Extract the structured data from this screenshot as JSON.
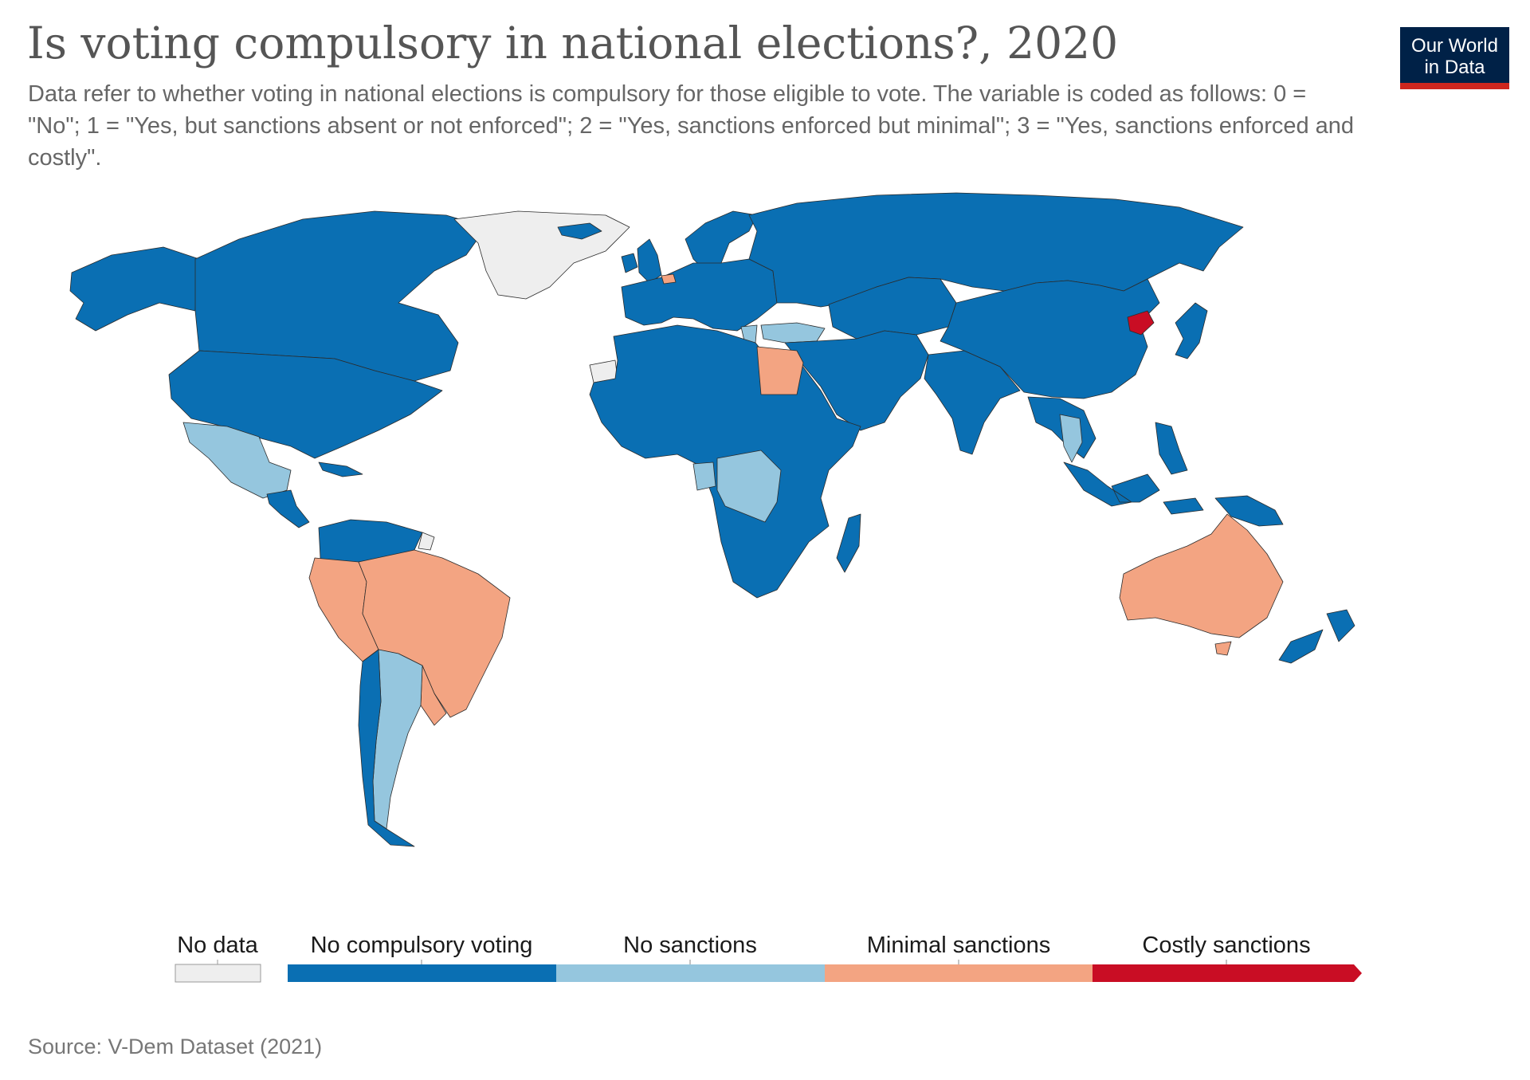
{
  "header": {
    "title": "Is voting compulsory in national elections?, 2020",
    "subtitle": "Data refer to whether voting in national elections is compulsory for those eligible to vote. The variable is coded as follows: 0 = \"No\"; 1 = \"Yes, but sanctions absent or not enforced\"; 2 = \"Yes, sanctions enforced but minimal\"; 3 = \"Yes, sanctions enforced and costly\".",
    "logo_line1": "Our World",
    "logo_line2": "in Data"
  },
  "colors": {
    "no_data": "#eeeeee",
    "no_compulsory": "#0a6fb3",
    "no_sanctions": "#95c6de",
    "minimal_sanctions": "#f3a482",
    "costly_sanctions": "#c90d24",
    "logo_bg": "#002147",
    "logo_bar": "#ce261e"
  },
  "legend": {
    "no_data": "No data",
    "categories": [
      "No compulsory voting",
      "No sanctions",
      "Minimal sanctions",
      "Costly sanctions"
    ]
  },
  "map_data": {
    "year": 2020,
    "category_keys": [
      "no_compulsory",
      "no_sanctions",
      "minimal_sanctions",
      "costly_sanctions",
      "no_data"
    ],
    "regions": [
      {
        "name": "Canada",
        "category": "no_compulsory"
      },
      {
        "name": "United States",
        "category": "no_compulsory"
      },
      {
        "name": "Alaska",
        "category": "no_compulsory"
      },
      {
        "name": "Greenland",
        "category": "no_data"
      },
      {
        "name": "Mexico",
        "category": "no_sanctions"
      },
      {
        "name": "Central America",
        "category": "no_compulsory"
      },
      {
        "name": "Cuba",
        "category": "no_compulsory"
      },
      {
        "name": "Venezuela and Colombia",
        "category": "no_compulsory"
      },
      {
        "name": "French Guiana",
        "category": "no_data"
      },
      {
        "name": "Peru",
        "category": "minimal_sanctions"
      },
      {
        "name": "Brazil",
        "category": "minimal_sanctions"
      },
      {
        "name": "Uruguay",
        "category": "minimal_sanctions"
      },
      {
        "name": "Argentina",
        "category": "no_sanctions"
      },
      {
        "name": "Chile",
        "category": "no_compulsory"
      },
      {
        "name": "Iceland",
        "category": "no_compulsory"
      },
      {
        "name": "United Kingdom",
        "category": "no_compulsory"
      },
      {
        "name": "Ireland",
        "category": "no_compulsory"
      },
      {
        "name": "Belgium",
        "category": "minimal_sanctions"
      },
      {
        "name": "Europe",
        "category": "no_compulsory"
      },
      {
        "name": "Scandinavia",
        "category": "no_compulsory"
      },
      {
        "name": "Greece",
        "category": "no_sanctions"
      },
      {
        "name": "Turkey",
        "category": "no_sanctions"
      },
      {
        "name": "Russia",
        "category": "no_compulsory"
      },
      {
        "name": "Western Sahara",
        "category": "no_data"
      },
      {
        "name": "Africa",
        "category": "no_compulsory"
      },
      {
        "name": "Egypt",
        "category": "minimal_sanctions"
      },
      {
        "name": "Gabon",
        "category": "no_sanctions"
      },
      {
        "name": "DR Congo",
        "category": "no_sanctions"
      },
      {
        "name": "Madagascar",
        "category": "no_compulsory"
      },
      {
        "name": "Middle East",
        "category": "no_compulsory"
      },
      {
        "name": "Central Asia",
        "category": "no_compulsory"
      },
      {
        "name": "India",
        "category": "no_compulsory"
      },
      {
        "name": "China",
        "category": "no_compulsory"
      },
      {
        "name": "North Korea",
        "category": "costly_sanctions"
      },
      {
        "name": "Japan",
        "category": "no_compulsory"
      },
      {
        "name": "Thailand",
        "category": "no_sanctions"
      },
      {
        "name": "Southeast Asia",
        "category": "no_compulsory"
      },
      {
        "name": "Indonesia",
        "category": "no_compulsory"
      },
      {
        "name": "Philippines",
        "category": "no_compulsory"
      },
      {
        "name": "Papua New Guinea",
        "category": "no_compulsory"
      },
      {
        "name": "Australia",
        "category": "minimal_sanctions"
      },
      {
        "name": "New Zealand",
        "category": "no_compulsory"
      }
    ]
  },
  "footer": {
    "source": "Source: V-Dem Dataset (2021)"
  }
}
